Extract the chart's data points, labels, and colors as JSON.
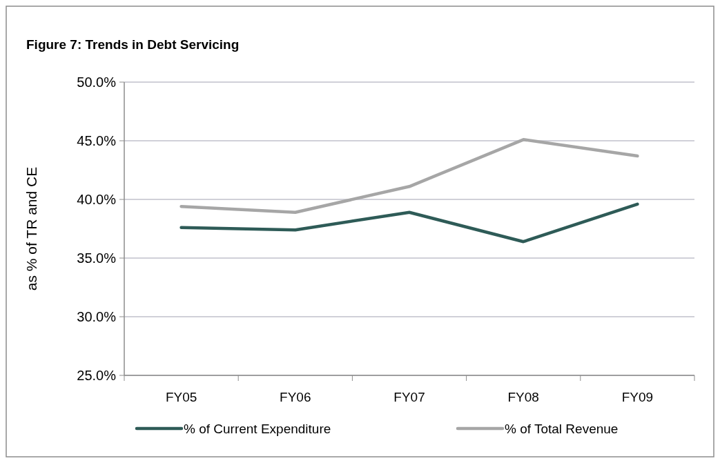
{
  "chart_data": {
    "type": "line",
    "title": "Figure 7: Trends in Debt Servicing",
    "ylabel": "as % of TR and CE",
    "categories": [
      "FY05",
      "FY06",
      "FY07",
      "FY08",
      "FY09"
    ],
    "series": [
      {
        "name": "% of Current Expenditure",
        "color": "#2e5b57",
        "values": [
          37.6,
          37.4,
          38.9,
          36.4,
          39.6
        ]
      },
      {
        "name": "% of Total Revenue",
        "color": "#a6a6a6",
        "values": [
          39.4,
          38.9,
          41.1,
          45.1,
          43.7
        ]
      }
    ],
    "ylim": [
      25,
      50
    ],
    "yticks": [
      {
        "value": 25,
        "label": "25.0%"
      },
      {
        "value": 30,
        "label": "30.0%"
      },
      {
        "value": 35,
        "label": "35.0%"
      },
      {
        "value": 40,
        "label": "40.0%"
      },
      {
        "value": 45,
        "label": "45.0%"
      },
      {
        "value": 50,
        "label": "50.0%"
      }
    ],
    "grid": "y",
    "legend": "bottom",
    "marker": "none",
    "line_style": "solid"
  }
}
